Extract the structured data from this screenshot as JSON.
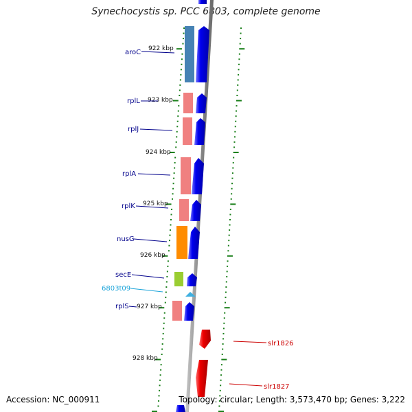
{
  "title": "Synechocystis sp. PCC 6803, complete genome",
  "accession": "Accession: NC_000911",
  "topology": "Topology: circular; Length: 3,573,470 bp; Genes: 3,222",
  "colors": {
    "backbone": "#8a8a8a",
    "tick": "#1a7f1a",
    "forward_gene": "#0000ee",
    "reverse_gene": "#ee0000",
    "label_blue": "#00008b",
    "label_red": "#cc0000",
    "label_cyan": "#1aa3d9"
  },
  "scale_labels": [
    "922 kbp",
    "923 kbp",
    "924 kbp",
    "925 kbp",
    "926 kbp",
    "927 kbp",
    "928 kbp"
  ],
  "left_genes": [
    {
      "name": "aroC",
      "product_color": "#4682b4",
      "color_name": "steelblue"
    },
    {
      "name": "rplL",
      "product_color": "#f08080",
      "color_name": "lightcoral"
    },
    {
      "name": "rplJ",
      "product_color": "#f08080",
      "color_name": "lightcoral"
    },
    {
      "name": "rplA",
      "product_color": "#f08080",
      "color_name": "lightcoral"
    },
    {
      "name": "rplK",
      "product_color": "#f08080",
      "color_name": "lightcoral"
    },
    {
      "name": "nusG",
      "product_color": "#ff8c00",
      "color_name": "orange"
    },
    {
      "name": "secE",
      "product_color": "#9acd32",
      "color_name": "yellowgreen"
    },
    {
      "name": "6803t09",
      "product_color": "#40b0e0",
      "color_name": "skyblue"
    },
    {
      "name": "rplS",
      "product_color": "#f08080",
      "color_name": "lightcoral"
    }
  ],
  "right_genes": [
    {
      "name": "slr1826"
    },
    {
      "name": "slr1827"
    }
  ]
}
